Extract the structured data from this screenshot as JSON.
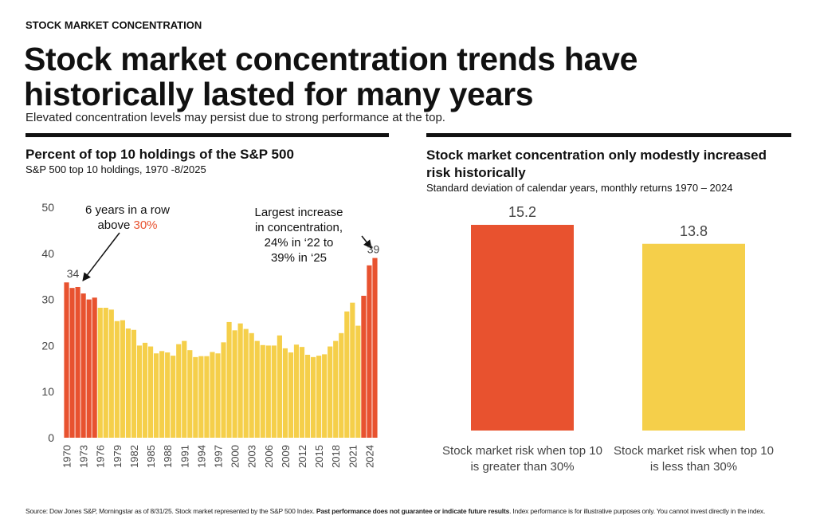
{
  "header": {
    "eyebrow": "STOCK MARKET CONCENTRATION",
    "title": "Stock market concentration trends have historically lasted for many years",
    "subtitle": "Elevated concentration levels may persist due to strong performance at the top."
  },
  "chart_data": [
    {
      "type": "bar",
      "title": "Percent of top 10 holdings of the S&P 500",
      "subtitle": "S&P 500 top 10 holdings, 1970 -8/2025",
      "categories": [
        "1970",
        null,
        null,
        "1973",
        null,
        null,
        "1976",
        null,
        null,
        "1979",
        null,
        null,
        "1982",
        null,
        null,
        "1985",
        null,
        null,
        "1988",
        null,
        null,
        "1991",
        null,
        null,
        "1994",
        null,
        null,
        "1997",
        null,
        null,
        "2000",
        null,
        null,
        "2003",
        null,
        null,
        "2006",
        null,
        null,
        "2009",
        null,
        null,
        "2012",
        null,
        null,
        "2015",
        null,
        null,
        "2018",
        null,
        null,
        "2021",
        null,
        null,
        "2024",
        null
      ],
      "values": [
        33.7,
        32.5,
        32.7,
        31.3,
        30.0,
        30.4,
        28.2,
        28.2,
        27.8,
        25.3,
        25.5,
        23.7,
        23.4,
        20.0,
        20.6,
        19.8,
        18.3,
        18.8,
        18.5,
        17.8,
        20.3,
        21.0,
        19.0,
        17.5,
        17.7,
        17.7,
        18.6,
        18.3,
        20.7,
        25.1,
        23.3,
        24.8,
        23.6,
        22.7,
        21.0,
        20.1,
        20.0,
        20.0,
        22.2,
        19.4,
        18.5,
        20.2,
        19.7,
        18.0,
        17.5,
        17.8,
        18.1,
        19.8,
        21.0,
        22.7,
        27.4,
        29.3,
        24.3,
        30.8,
        37.4,
        39.0
      ],
      "value_labels": [
        "34",
        null,
        null,
        null,
        null,
        null,
        null,
        null,
        null,
        null,
        null,
        null,
        null,
        null,
        null,
        null,
        null,
        null,
        null,
        null,
        null,
        null,
        null,
        null,
        null,
        null,
        null,
        null,
        null,
        null,
        null,
        null,
        null,
        null,
        null,
        null,
        null,
        null,
        null,
        null,
        null,
        null,
        null,
        null,
        null,
        null,
        null,
        null,
        null,
        null,
        null,
        null,
        null,
        null,
        null,
        "39"
      ],
      "colors": [
        "#e8522f",
        "#e8522f",
        "#e8522f",
        "#e8522f",
        "#e8522f",
        "#e8522f",
        "#f5cf4a",
        "#f5cf4a",
        "#f5cf4a",
        "#f5cf4a",
        "#f5cf4a",
        "#f5cf4a",
        "#f5cf4a",
        "#f5cf4a",
        "#f5cf4a",
        "#f5cf4a",
        "#f5cf4a",
        "#f5cf4a",
        "#f5cf4a",
        "#f5cf4a",
        "#f5cf4a",
        "#f5cf4a",
        "#f5cf4a",
        "#f5cf4a",
        "#f5cf4a",
        "#f5cf4a",
        "#f5cf4a",
        "#f5cf4a",
        "#f5cf4a",
        "#f5cf4a",
        "#f5cf4a",
        "#f5cf4a",
        "#f5cf4a",
        "#f5cf4a",
        "#f5cf4a",
        "#f5cf4a",
        "#f5cf4a",
        "#f5cf4a",
        "#f5cf4a",
        "#f5cf4a",
        "#f5cf4a",
        "#f5cf4a",
        "#f5cf4a",
        "#f5cf4a",
        "#f5cf4a",
        "#f5cf4a",
        "#f5cf4a",
        "#f5cf4a",
        "#f5cf4a",
        "#f5cf4a",
        "#f5cf4a",
        "#f5cf4a",
        "#f5cf4a",
        "#e8522f",
        "#e8522f",
        "#e8522f"
      ],
      "ylim": [
        0,
        50
      ],
      "yticks": [
        0,
        10,
        20,
        30,
        40,
        50
      ],
      "annotations": [
        [
          "6 years in a row",
          "above",
          "30%"
        ],
        [
          "Largest increase",
          "in concentration,",
          "24% in ‘22 to",
          "39% in ‘25"
        ]
      ]
    },
    {
      "type": "bar",
      "title": "Stock market concentration only modestly increased risk historically",
      "subtitle": "Standard deviation of calendar years, monthly returns 1970 – 2024",
      "categories": [
        "Stock market risk when top 10 is greater than 30%",
        "Stock market risk when top 10 is less than 30%"
      ],
      "values": [
        15.2,
        13.8
      ],
      "colors": [
        "#e8522f",
        "#f5cf4a"
      ]
    }
  ],
  "footer": [
    "Source: Dow Jones S&P, Morningstar as of 8/31/25. Stock market represented by the S&P 500 Index.",
    "Past performance does not guarantee or indicate future results",
    ". Index performance is for illustrative purposes only. You cannot invest directly in the index."
  ]
}
